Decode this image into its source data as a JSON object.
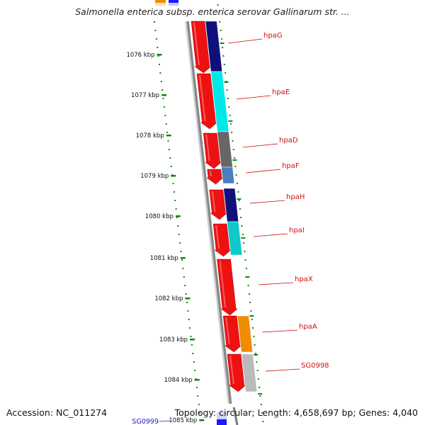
{
  "title": "Salmonella enterica subsp. enterica serovar Gallinarum str. ...",
  "footer": {
    "accession": "Accession: NC_011274",
    "summary": "Topology: circular; Length: 4,658,697 bp; Genes: 4,040"
  },
  "ticks": [
    "1076 kbp",
    "1077 kbp",
    "1078 kbp",
    "1079 kbp",
    "1080 kbp",
    "1081 kbp",
    "1082 kbp",
    "1083 kbp",
    "1084 kbp",
    "1085 kbp"
  ],
  "colors": {
    "cds_forward": "#ee1111",
    "backbone": "#888888",
    "tick": "#118811",
    "label": "#cc0000"
  },
  "features": [
    {
      "label": "hpaG",
      "color": "#10107a"
    },
    {
      "label": "hpaE",
      "color": "#00e8e8"
    },
    {
      "label": "hpaD",
      "color": "#666666"
    },
    {
      "label": "hpaF",
      "color": "#4a7fc0"
    },
    {
      "label": "hpaH",
      "color": "#10107a"
    },
    {
      "label": "hpaI",
      "color": "#10c8c8"
    },
    {
      "label": "hpaX",
      "color": null
    },
    {
      "label": "hpaA",
      "color": "#f08c00"
    },
    {
      "label": "SG0998",
      "color": "#bbbbbb"
    }
  ],
  "partial_label": "SG0999"
}
